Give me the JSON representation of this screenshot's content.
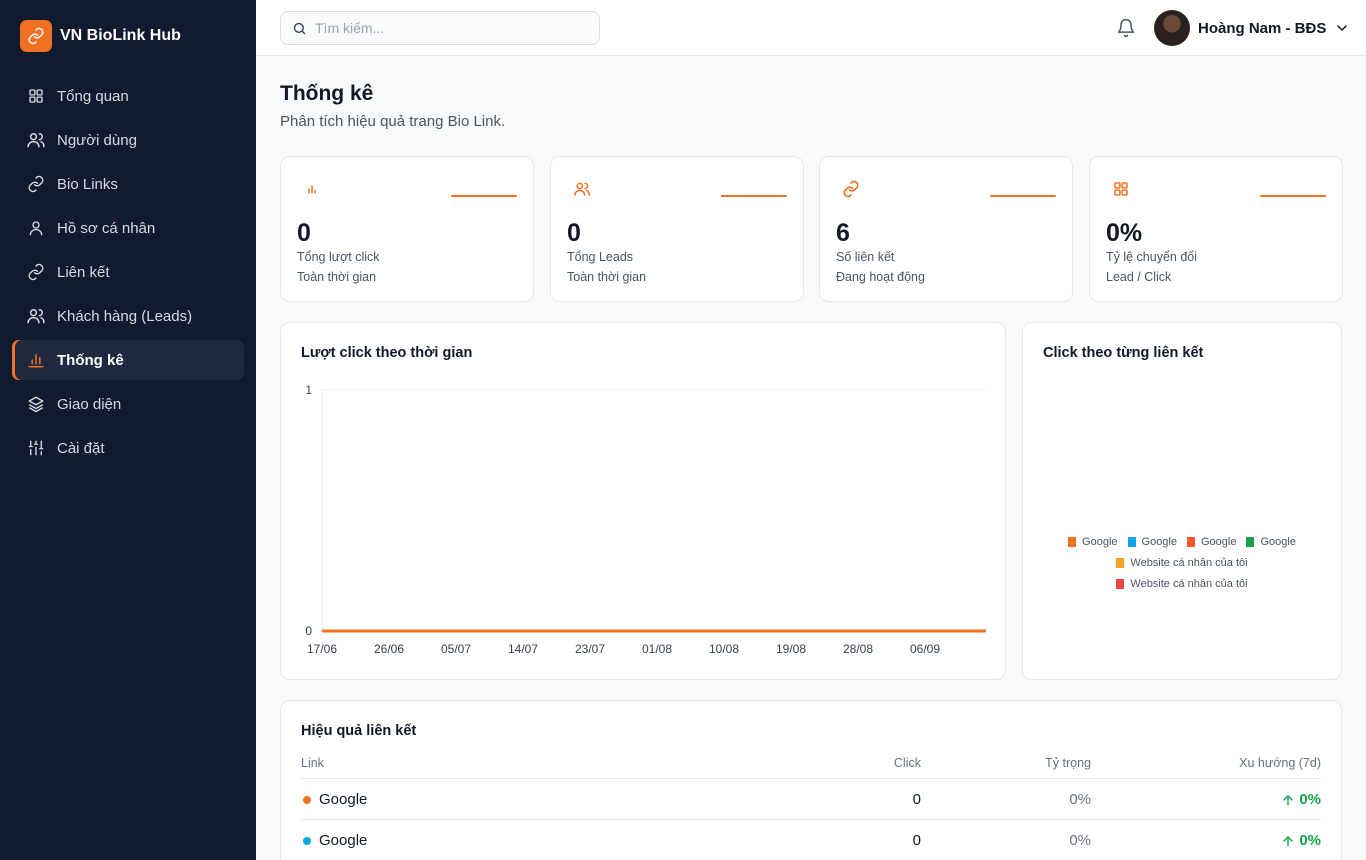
{
  "app": {
    "brand_name": "VN BioLink Hub",
    "accent_color": "#f07122",
    "sidebar_color": "#111a2e"
  },
  "sidebar": {
    "items": [
      {
        "label": "Tổng quan",
        "icon": "grid-icon",
        "active": false
      },
      {
        "label": "Người dùng",
        "icon": "users-icon",
        "active": false
      },
      {
        "label": "Bio Links",
        "icon": "link-icon",
        "active": false
      },
      {
        "label": "Hồ sơ cá nhân",
        "icon": "user-icon",
        "active": false
      },
      {
        "label": "Liên kết",
        "icon": "link-icon",
        "active": false
      },
      {
        "label": "Khách hàng (Leads)",
        "icon": "users-icon",
        "active": false
      },
      {
        "label": "Thống kê",
        "icon": "bar-chart-icon",
        "active": true
      },
      {
        "label": "Giao diện",
        "icon": "layers-icon",
        "active": false
      },
      {
        "label": "Cài đặt",
        "icon": "sliders-icon",
        "active": false
      }
    ]
  },
  "header": {
    "search_placeholder": "Tìm kiếm...",
    "user_name": "Hoàng Nam - BĐS"
  },
  "page": {
    "title": "Thống kê",
    "subtitle": "Phân tích hiệu quả trang Bio Link."
  },
  "stats": [
    {
      "value": "0",
      "label": "Tổng lượt click",
      "sub": "Toàn thời gian",
      "icon": "bar-chart-icon"
    },
    {
      "value": "0",
      "label": "Tổng Leads",
      "sub": "Toàn thời gian",
      "icon": "users-icon"
    },
    {
      "value": "6",
      "label": "Số liên kết",
      "sub": "Đang hoạt động",
      "icon": "link-icon"
    },
    {
      "value": "0%",
      "label": "Tỷ lệ chuyển đổi",
      "sub": "Lead / Click",
      "icon": "grid-icon"
    }
  ],
  "line_card": {
    "title": "Lượt click theo thời gian"
  },
  "pie_card": {
    "title": "Click theo từng liên kết"
  },
  "chart_data": [
    {
      "type": "line",
      "title": "Lượt click theo thời gian",
      "x_tick_labels": [
        "17/06",
        "26/06",
        "05/07",
        "14/07",
        "23/07",
        "01/08",
        "10/08",
        "19/08",
        "28/08",
        "06/09"
      ],
      "series": [
        {
          "values": [
            0,
            0,
            0,
            0,
            0,
            0,
            0,
            0,
            0,
            0,
            0
          ],
          "color": "#f07122"
        }
      ],
      "ylim": [
        0,
        1
      ],
      "y_ticks": [
        "0",
        "1"
      ],
      "grid": "horizontal"
    },
    {
      "type": "pie",
      "title": "Click theo từng liên kết",
      "legend_position": "center",
      "categories": [
        "Google",
        "Google",
        "Google",
        "Google",
        "Website cá nhân của tôi",
        "Website cá nhân của tôi"
      ],
      "values": [
        0,
        0,
        0,
        0,
        0,
        0
      ],
      "colors": [
        "#f07122",
        "#0ea5e9",
        "#f05a28",
        "#16a34a",
        "#f5a524",
        "#ef4444"
      ]
    }
  ],
  "table": {
    "title": "Hiệu quả liên kết",
    "headers": {
      "link": "Link",
      "click": "Click",
      "share": "Tỷ trọng",
      "trend": "Xu hướng (7d)"
    },
    "rows": [
      {
        "name": "Google",
        "click": "0",
        "share": "0%",
        "trend": "0%",
        "color": "#f07122"
      },
      {
        "name": "Google",
        "click": "0",
        "share": "0%",
        "trend": "0%",
        "color": "#0ea5e9"
      }
    ]
  }
}
